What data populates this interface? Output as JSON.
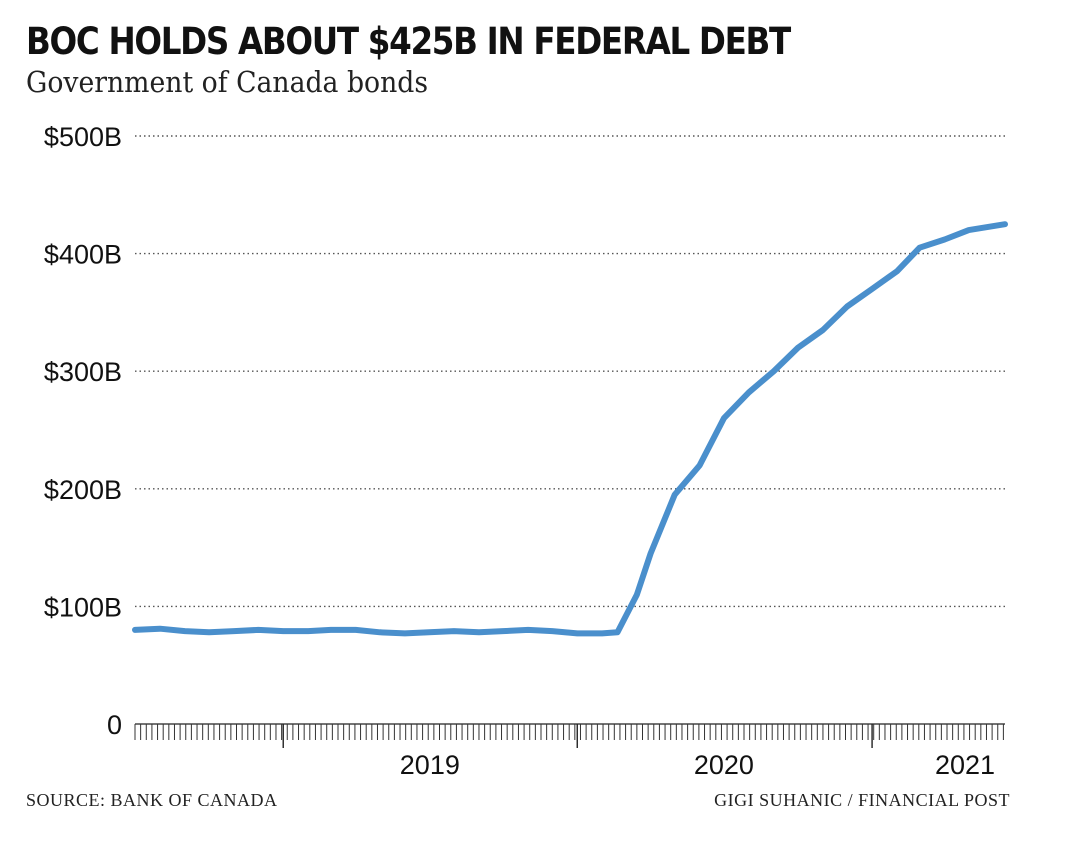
{
  "chart_data": {
    "type": "line",
    "title": "BOC HOLDS ABOUT $425B IN FEDERAL DEBT",
    "subtitle": "Government of Canada bonds",
    "ylim": [
      0,
      500
    ],
    "yticks": [
      0,
      100,
      200,
      300,
      400,
      500
    ],
    "ytick_labels": [
      "0",
      "$100B",
      "$200B",
      "$300B",
      "$400B",
      "$500B"
    ],
    "xlim": [
      "2018-07-01",
      "2021-06-15"
    ],
    "xtick_labels": [
      {
        "label": "2019",
        "center": "2019-01-01"
      },
      {
        "label": "2020",
        "center": "2020-01-01"
      },
      {
        "label": "2021",
        "center": "2021-01-01"
      }
    ],
    "grid": true,
    "color": "#4a8fcc",
    "series": [
      {
        "x": [
          "2018-07-01",
          "2018-08-01",
          "2018-09-01",
          "2018-10-01",
          "2018-11-01",
          "2018-12-01",
          "2019-01-01",
          "2019-02-01",
          "2019-03-01",
          "2019-04-01",
          "2019-05-01",
          "2019-06-01",
          "2019-07-01",
          "2019-08-01",
          "2019-09-01",
          "2019-10-01",
          "2019-11-01",
          "2019-12-01",
          "2020-01-01",
          "2020-02-01",
          "2020-02-20",
          "2020-03-15",
          "2020-04-01",
          "2020-05-01",
          "2020-06-01",
          "2020-07-01",
          "2020-08-01",
          "2020-09-01",
          "2020-10-01",
          "2020-11-01",
          "2020-12-01",
          "2021-01-01",
          "2021-02-01",
          "2021-03-01",
          "2021-04-01",
          "2021-05-01",
          "2021-06-15"
        ],
        "values": [
          80,
          81,
          79,
          78,
          79,
          80,
          79,
          79,
          80,
          80,
          78,
          77,
          78,
          79,
          78,
          79,
          80,
          79,
          77,
          77,
          78,
          110,
          145,
          195,
          220,
          260,
          282,
          300,
          320,
          335,
          355,
          370,
          385,
          405,
          412,
          420,
          425
        ]
      }
    ]
  },
  "footer": {
    "source": "SOURCE: BANK OF CANADA",
    "credit": "GIGI SUHANIC / FINANCIAL POST"
  }
}
